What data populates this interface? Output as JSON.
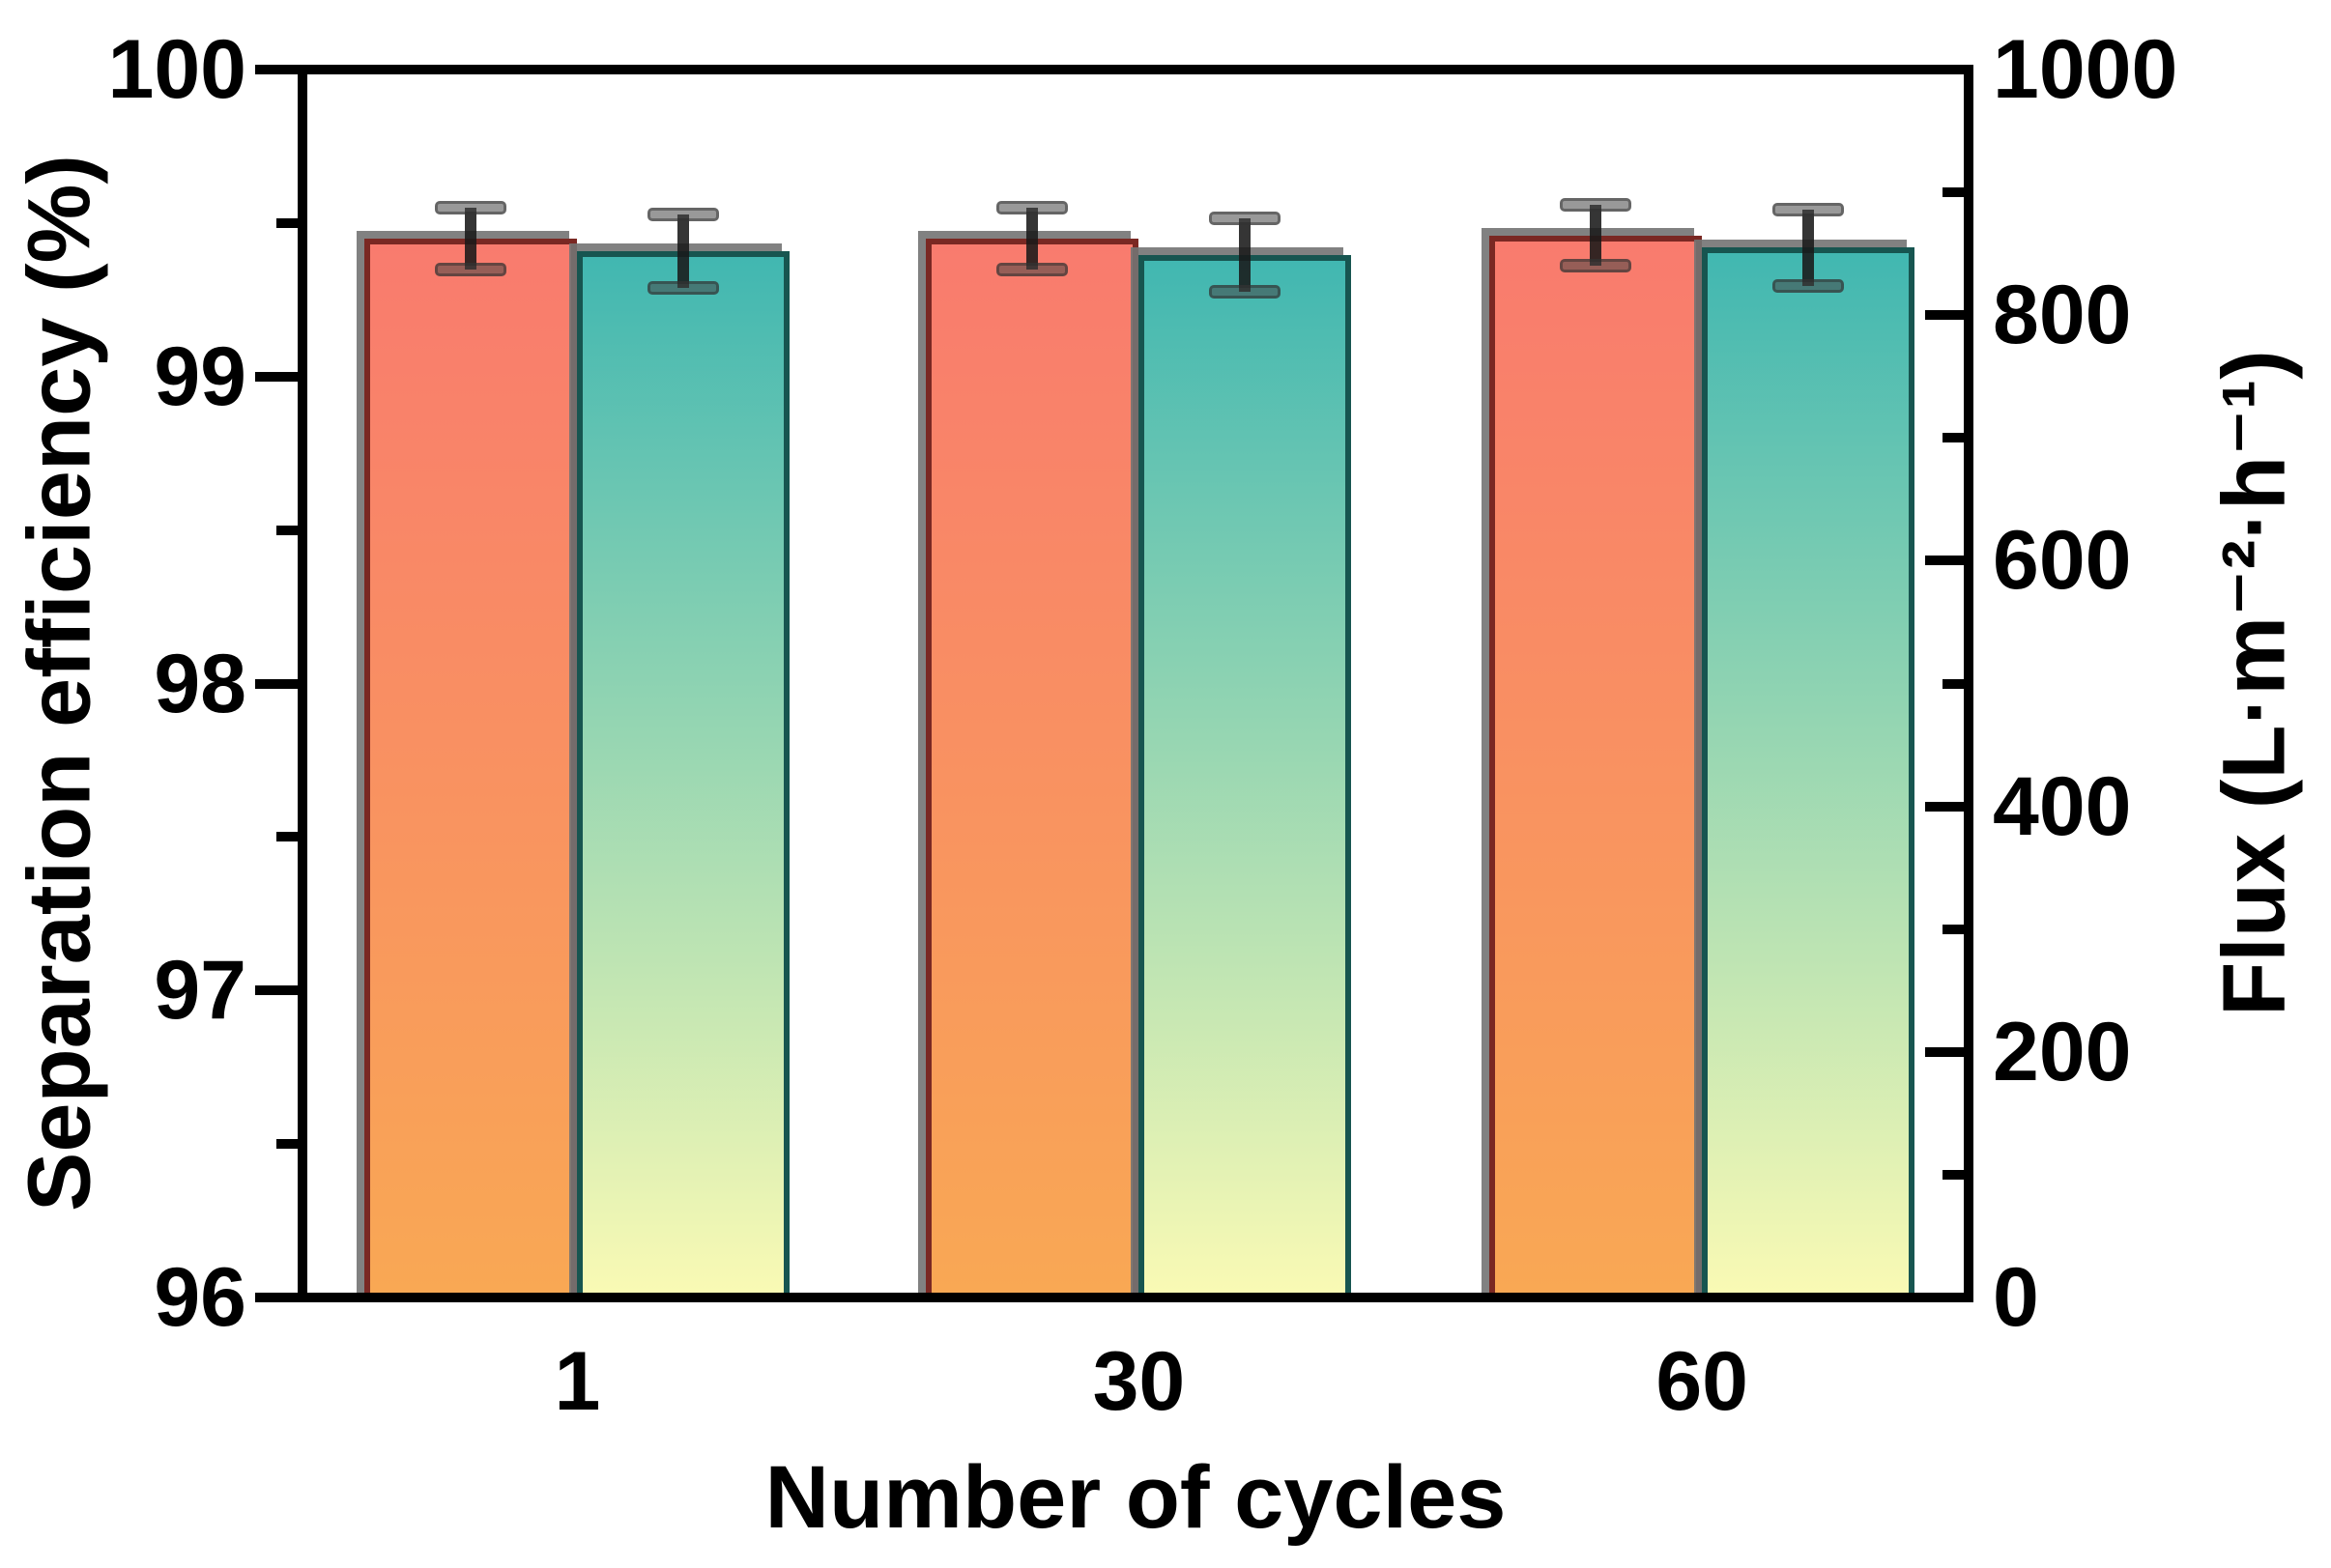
{
  "figure": {
    "background": "#ffffff",
    "axis_color": "#000000",
    "tick_label_color": "#000000"
  },
  "chart_data": {
    "type": "bar",
    "categories": [
      "1",
      "30",
      "60"
    ],
    "series": [
      {
        "name": "Separation efficiency",
        "axis": "left",
        "values": [
          99.45,
          99.45,
          99.46
        ],
        "errors": [
          0.1,
          0.1,
          0.1
        ],
        "bar_color_top": "#F97B6E",
        "bar_color_bottom": "#F9A854",
        "border_color": "#7A2823"
      },
      {
        "name": "Flux",
        "axis": "right",
        "values": [
          852,
          849,
          855
        ],
        "errors": [
          30,
          30,
          31
        ],
        "bar_color_top": "#41B7B1",
        "bar_color_bottom": "#FAFAB4",
        "border_color": "#175550"
      }
    ],
    "xlabel": "Number of cycles",
    "ylabel_left": "Separation efficiency (%)",
    "ylabel_right": "Flux (L·m⁻²·h⁻¹)",
    "left_axis": {
      "min": 96,
      "max": 100,
      "major_ticks": [
        100,
        99,
        98,
        97,
        96
      ],
      "minor_ticks": [
        99.5,
        98.5,
        97.5,
        96.5
      ]
    },
    "right_axis": {
      "min": 0,
      "max": 1000,
      "major_ticks": [
        1000,
        800,
        600,
        400,
        200,
        0
      ],
      "minor_ticks": [
        900,
        700,
        500,
        300,
        100
      ]
    },
    "grid": false,
    "legend": "none",
    "error_bar_color": "rgba(25,25,25,0.88)",
    "error_cap_color": "rgba(70,70,70,0.55)",
    "shadow_color": "rgba(115,115,115,0.9)"
  }
}
